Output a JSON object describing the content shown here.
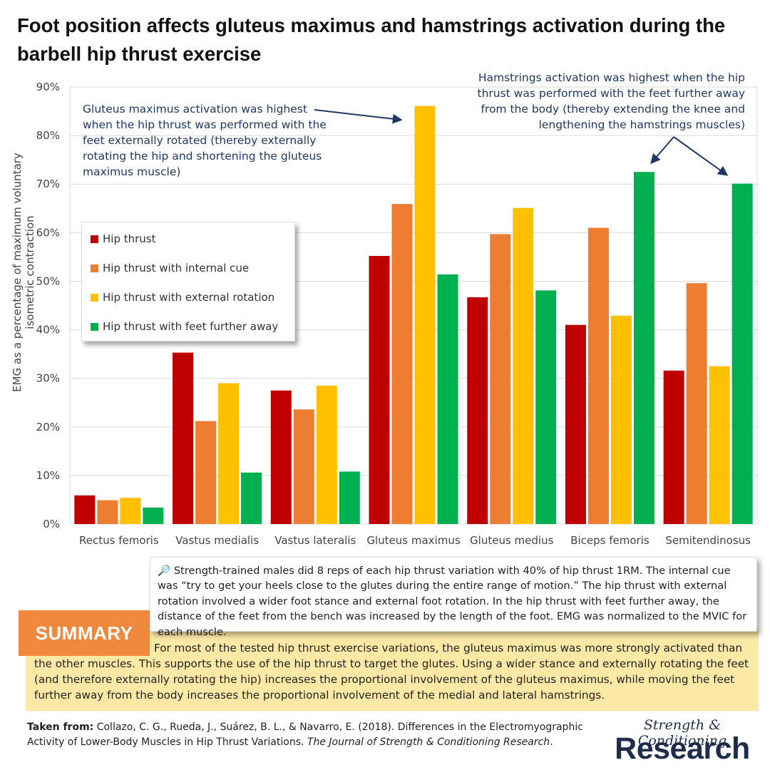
{
  "title": "Foot position affects gluteus maximus and hamstrings activation during the barbell hip thrust exercise",
  "colors": {
    "hip_thrust": "#c00000",
    "internal_cue": "#ed7d31",
    "external_rotation": "#ffc000",
    "feet_further": "#00b050",
    "annotation": "#1f3864",
    "summary_bg": "#fde9a6",
    "summary_tag": "#f0883e"
  },
  "chart_data": {
    "type": "bar",
    "ylabel": "EMG as a percentage of maximum voluntary isometric contraction",
    "ylim": [
      0,
      90
    ],
    "yticks": [
      "0%",
      "10%",
      "20%",
      "30%",
      "40%",
      "50%",
      "60%",
      "70%",
      "80%",
      "90%"
    ],
    "grid": true,
    "categories": [
      "Rectus femoris",
      "Vastus medialis",
      "Vastus lateralis",
      "Gluteus maximus",
      "Gluteus medius",
      "Biceps femoris",
      "Semitendinosus"
    ],
    "series": [
      {
        "name": "Hip thrust",
        "color": "#c00000",
        "values": [
          5.9,
          35.3,
          27.5,
          55.2,
          46.7,
          41.0,
          31.6
        ]
      },
      {
        "name": "Hip thrust with internal cue",
        "color": "#ed7d31",
        "values": [
          4.9,
          21.2,
          23.6,
          65.9,
          59.7,
          61.0,
          49.6
        ]
      },
      {
        "name": "Hip thrust with external rotation",
        "color": "#ffc000",
        "values": [
          5.4,
          29.0,
          28.5,
          86.1,
          65.1,
          42.9,
          32.5
        ]
      },
      {
        "name": "Hip thrust with feet further away",
        "color": "#00b050",
        "values": [
          3.4,
          10.6,
          10.8,
          51.4,
          48.1,
          72.5,
          70.1
        ]
      }
    ],
    "legend_position": "upper-left"
  },
  "annotations": {
    "gluteus": "Gluteus maximus activation was highest when the hip thrust was performed with the feet externally rotated (thereby externally rotating the hip and shortening the gluteus maximus muscle)",
    "hamstrings": "Hamstrings activation was highest when the hip thrust was performed with the feet further away from the body (thereby extending the knee and lengthening the hamstrings muscles)"
  },
  "note": {
    "icon": "magnifier-icon",
    "icon_glyph": "🔎",
    "text": "Strength-trained males did 8 reps of each hip thrust variation with 40% of hip thrust 1RM. The internal cue was “try to get your heels close to the glutes during the entire range of motion.” The hip thrust with external rotation involved a wider foot stance and external foot rotation. In the hip thrust with feet further away, the distance of the feet from the bench was increased by the length of the foot. EMG was normalized to the MVIC for each muscle."
  },
  "summary": {
    "label": "SUMMARY",
    "text": "For most of the tested hip thrust exercise variations, the gluteus maximus was more strongly activated than the other muscles. This supports the use of the hip thrust to target the glutes. Using a wider stance and externally rotating the feet (and therefore externally rotating the hip) increases the proportional involvement of the gluteus maximus, while moving the feet further away from the body increases the proportional involvement of the medial and lateral hamstrings."
  },
  "citation": {
    "lead": "Taken from:",
    "authors": " Collazo, C. G., Rueda, J., Suárez, B. L., & Navarro, E. (2018). Differences in the Electromyographic Activity of Lower-Body Muscles in Hip Thrust Variations. ",
    "journal": "The Journal of Strength & Conditioning Research",
    "end": "."
  },
  "logo": {
    "top": "Strength & Conditioning",
    "bottom": "Research"
  }
}
